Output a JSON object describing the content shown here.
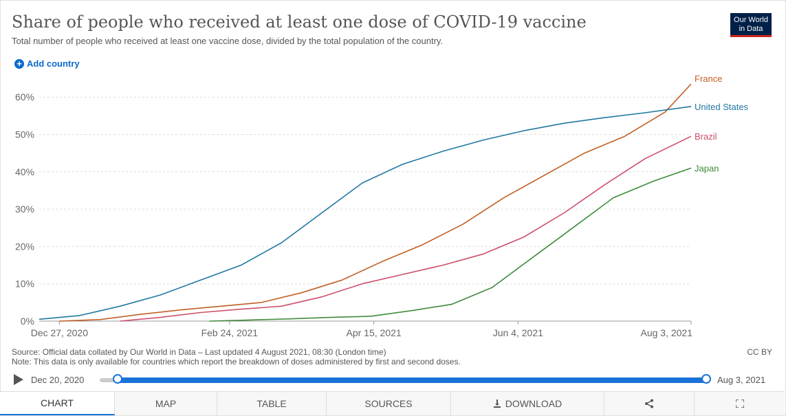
{
  "header": {
    "title": "Share of people who received at least one dose of COVID-19 vaccine",
    "subtitle": "Total number of people who received at least one vaccine dose, divided by the total population of the country.",
    "logo_line1": "Our World",
    "logo_line2": "in Data",
    "add_country_label": "Add country"
  },
  "chart_data": {
    "type": "line",
    "title": "Share of people who received at least one dose of COVID-19 vaccine",
    "subtitle": "Total number of people who received at least one vaccine dose, divided by the total population of the country.",
    "xlabel": "",
    "ylabel": "",
    "x_ticks": [
      "Dec 27, 2020",
      "Feb 24, 2021",
      "Apr 15, 2021",
      "Jun 4, 2021",
      "Aug 3, 2021"
    ],
    "x_tick_dates": [
      "2020-12-27",
      "2021-02-24",
      "2021-04-15",
      "2021-06-04",
      "2021-08-03"
    ],
    "y_ticks": [
      "0%",
      "10%",
      "20%",
      "30%",
      "40%",
      "50%",
      "60%"
    ],
    "y_tick_values": [
      0,
      10,
      20,
      30,
      40,
      50,
      60
    ],
    "xlim": [
      "2020-12-20",
      "2021-08-03"
    ],
    "ylim": [
      0,
      65
    ],
    "grid": "horizontal dashed",
    "legend": "end-of-line labels",
    "series": [
      {
        "name": "France",
        "color": "#c15f24",
        "points": [
          [
            "2020-12-27",
            0.0
          ],
          [
            "2021-01-10",
            0.4
          ],
          [
            "2021-01-24",
            1.8
          ],
          [
            "2021-02-07",
            3.0
          ],
          [
            "2021-02-21",
            4.0
          ],
          [
            "2021-03-07",
            5.0
          ],
          [
            "2021-03-21",
            7.6
          ],
          [
            "2021-04-04",
            11.0
          ],
          [
            "2021-04-18",
            16.0
          ],
          [
            "2021-05-02",
            20.5
          ],
          [
            "2021-05-16",
            26.0
          ],
          [
            "2021-05-30",
            33.0
          ],
          [
            "2021-06-13",
            39.0
          ],
          [
            "2021-06-27",
            45.0
          ],
          [
            "2021-07-11",
            49.5
          ],
          [
            "2021-07-25",
            56.0
          ],
          [
            "2021-08-03",
            63.5
          ]
        ]
      },
      {
        "name": "United States",
        "color": "#1f77a0",
        "points": [
          [
            "2020-12-20",
            0.5
          ],
          [
            "2021-01-03",
            1.5
          ],
          [
            "2021-01-17",
            4.0
          ],
          [
            "2021-01-31",
            7.0
          ],
          [
            "2021-02-14",
            11.0
          ],
          [
            "2021-02-28",
            15.0
          ],
          [
            "2021-03-14",
            21.0
          ],
          [
            "2021-03-28",
            29.0
          ],
          [
            "2021-04-11",
            37.0
          ],
          [
            "2021-04-25",
            42.0
          ],
          [
            "2021-05-09",
            45.5
          ],
          [
            "2021-05-23",
            48.5
          ],
          [
            "2021-06-06",
            51.0
          ],
          [
            "2021-06-20",
            53.0
          ],
          [
            "2021-07-04",
            54.5
          ],
          [
            "2021-07-18",
            55.8
          ],
          [
            "2021-08-03",
            57.5
          ]
        ]
      },
      {
        "name": "Brazil",
        "color": "#cc4e69",
        "points": [
          [
            "2021-01-17",
            0.0
          ],
          [
            "2021-01-31",
            1.0
          ],
          [
            "2021-02-14",
            2.3
          ],
          [
            "2021-02-28",
            3.2
          ],
          [
            "2021-03-14",
            4.0
          ],
          [
            "2021-03-28",
            6.5
          ],
          [
            "2021-04-11",
            10.0
          ],
          [
            "2021-04-25",
            12.5
          ],
          [
            "2021-05-09",
            15.0
          ],
          [
            "2021-05-23",
            18.0
          ],
          [
            "2021-06-06",
            22.5
          ],
          [
            "2021-06-20",
            29.0
          ],
          [
            "2021-07-04",
            36.5
          ],
          [
            "2021-07-18",
            43.5
          ],
          [
            "2021-08-03",
            49.5
          ]
        ]
      },
      {
        "name": "Japan",
        "color": "#3e8b3a",
        "points": [
          [
            "2021-02-17",
            0.0
          ],
          [
            "2021-03-03",
            0.3
          ],
          [
            "2021-03-17",
            0.6
          ],
          [
            "2021-03-31",
            1.0
          ],
          [
            "2021-04-14",
            1.3
          ],
          [
            "2021-04-28",
            2.8
          ],
          [
            "2021-05-12",
            4.5
          ],
          [
            "2021-05-26",
            9.0
          ],
          [
            "2021-06-09",
            17.0
          ],
          [
            "2021-06-23",
            25.0
          ],
          [
            "2021-07-07",
            33.0
          ],
          [
            "2021-07-21",
            37.5
          ],
          [
            "2021-08-03",
            41.0
          ]
        ]
      }
    ]
  },
  "footer": {
    "source": "Source: Official data collated by Our World in Data – Last updated 4 August 2021, 08:30 (London time)",
    "note": "Note: This data is only available for countries which report the breakdown of doses administered by first and second doses.",
    "license": "CC BY"
  },
  "timeline": {
    "start_label": "Dec 20, 2020",
    "end_label": "Aug 3, 2021"
  },
  "tabs": [
    {
      "label": "CHART"
    },
    {
      "label": "MAP"
    },
    {
      "label": "TABLE"
    },
    {
      "label": "SOURCES"
    },
    {
      "label": "DOWNLOAD"
    }
  ],
  "colors": {
    "accent": "#1a73d8",
    "link": "#0b6bcb",
    "logo_bg": "#002147",
    "logo_stripe": "#ce261e"
  },
  "icons": [
    "plus-circle-icon",
    "play-icon",
    "download-icon",
    "share-icon",
    "fullscreen-icon"
  ]
}
